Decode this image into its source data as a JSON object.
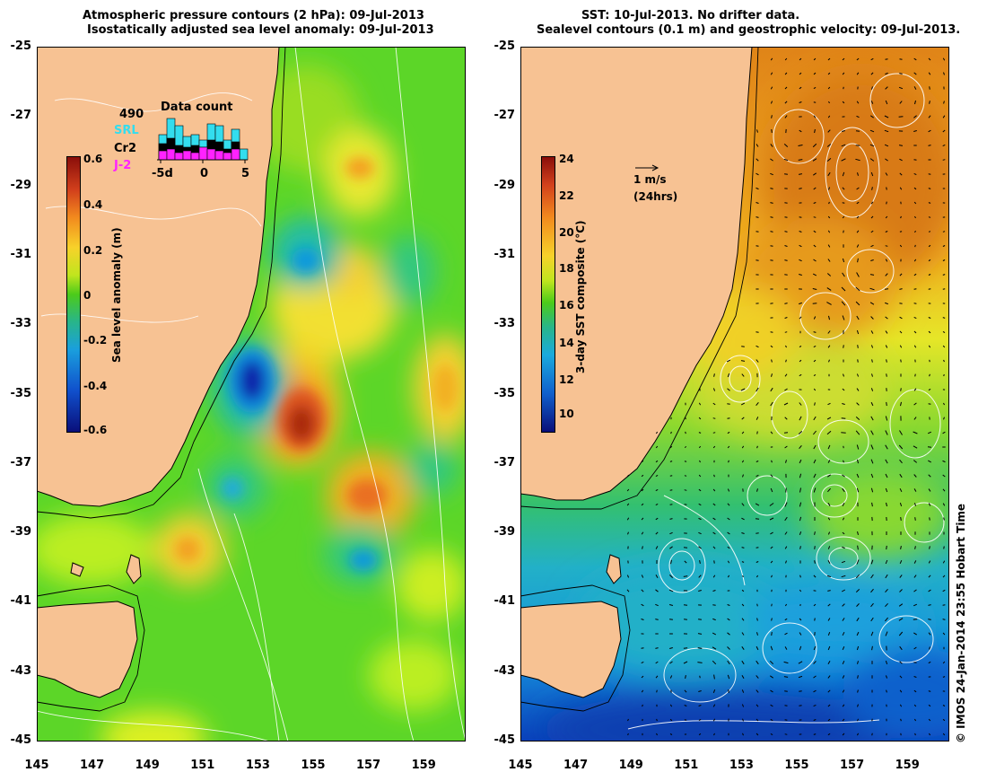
{
  "left_panel": {
    "title_line1": "Atmospheric pressure contours (2 hPa): 09-Jul-2013",
    "title_line2": "Isostatically adjusted sea level anomaly: 09-Jul-2013",
    "colorbar_label": "Sea level anomaly (m)",
    "colorbar_ticks": [
      "0.6",
      "0.4",
      "0.2",
      "0",
      "-0.2",
      "-0.4",
      "-0.6"
    ],
    "data_count": {
      "title": "Data count",
      "max_label": "490",
      "series": [
        "SRL",
        "Cr2",
        "J-2"
      ],
      "series_colors": [
        "#33ddee",
        "#000000",
        "#ff22ff"
      ],
      "x_ticks": [
        "-5d",
        "0",
        "5"
      ]
    }
  },
  "right_panel": {
    "title_line1": "SST: 10-Jul-2013. No drifter data.",
    "title_line2": "Sealevel contours (0.1 m) and geostrophic velocity: 09-Jul-2013.",
    "colorbar_label": "3-day SST composite (°C)",
    "colorbar_ticks": [
      "24",
      "22",
      "20",
      "18",
      "16",
      "14",
      "12",
      "10"
    ],
    "velocity_key_1": "1 m/s",
    "velocity_key_2": "(24hrs)"
  },
  "lat_ticks": [
    "-25",
    "-27",
    "-29",
    "-31",
    "-33",
    "-35",
    "-37",
    "-39",
    "-41",
    "-43",
    "-45"
  ],
  "lon_ticks": [
    "145",
    "147",
    "149",
    "151",
    "153",
    "155",
    "157",
    "159"
  ],
  "credit": "© IMOS 24-Jan-2014 23:55 Hobart Time",
  "colors": {
    "land": "#f7c293",
    "sla_background": "#66dd22",
    "sst_warm": "#e8901a",
    "sst_cold": "#1188dd"
  }
}
